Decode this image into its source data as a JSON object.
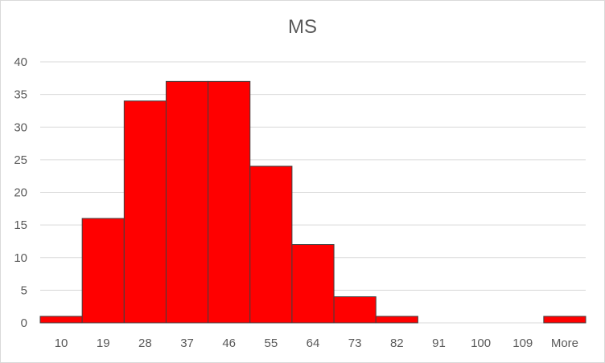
{
  "chart_data": {
    "type": "bar",
    "title": "MS",
    "categories": [
      "10",
      "19",
      "28",
      "37",
      "46",
      "55",
      "64",
      "73",
      "82",
      "91",
      "100",
      "109",
      "More"
    ],
    "values": [
      1,
      16,
      34,
      37,
      37,
      24,
      12,
      4,
      1,
      0,
      0,
      0,
      1
    ],
    "xlabel": "",
    "ylabel": "",
    "ylim": [
      0,
      40
    ],
    "yticks": [
      0,
      5,
      10,
      15,
      20,
      25,
      30,
      35,
      40
    ],
    "grid": true,
    "legend": "none",
    "bar_color": "#ff0000",
    "bar_edge_color": "#404040",
    "grid_color": "#d9d9d9",
    "text_color": "#595959"
  }
}
